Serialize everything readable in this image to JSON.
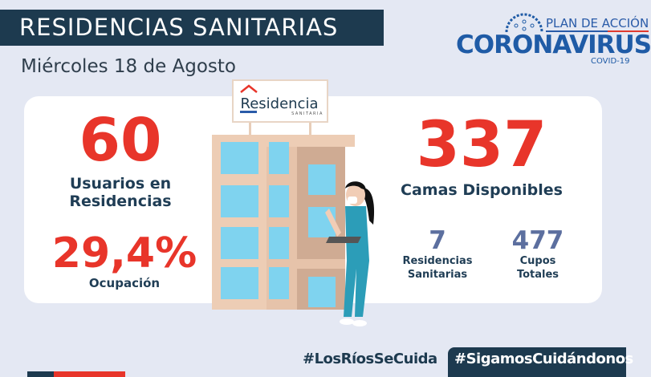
{
  "header": {
    "title": "RESIDENCIAS SANITARIAS",
    "date": "Miércoles 18 de Agosto"
  },
  "logo": {
    "plan": "PLAN DE ACCIÓN",
    "name": "CORONAVIRUS",
    "sub": "COVID-19"
  },
  "sign": {
    "name": "Residencia",
    "sub": "SANITARIA"
  },
  "stats": {
    "usuarios": {
      "value": "60",
      "label1": "Usuarios en",
      "label2": "Residencias"
    },
    "ocupacion": {
      "value": "29,4%",
      "label": "Ocupación"
    },
    "camas": {
      "value": "337",
      "label": "Camas Disponibles"
    },
    "residencias": {
      "value": "7",
      "label1": "Residencias",
      "label2": "Sanitarias"
    },
    "cupos": {
      "value": "477",
      "label1": "Cupos",
      "label2": "Totales"
    }
  },
  "footer": {
    "tag1": "#LosRíosSeCuida",
    "tag2": "#SigamosCuidándonos"
  },
  "colors": {
    "navy": "#1d3a4f",
    "red": "#e8352a",
    "blue": "#1f5ba6",
    "bg": "#e4e8f3"
  }
}
